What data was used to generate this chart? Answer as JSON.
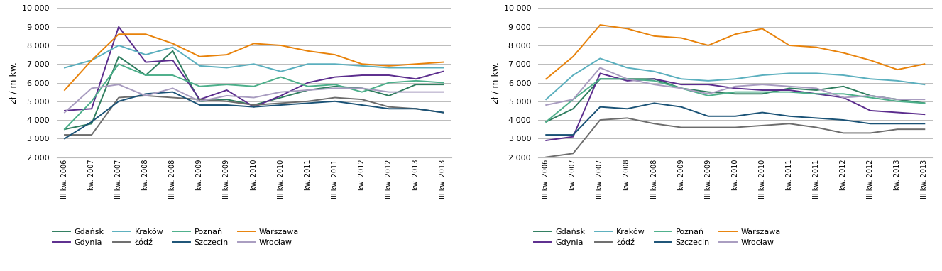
{
  "x_labels": [
    "III kw. 2006",
    "I kw. 2007",
    "III kw. 2007",
    "I kw. 2008",
    "III kw. 2008",
    "I kw. 2009",
    "III kw. 2009",
    "I kw. 2010",
    "III kw. 2010",
    "I kw. 2011",
    "III kw. 2011",
    "I kw. 2012",
    "III kw. 2012",
    "I kw. 2013",
    "III kw. 2013"
  ],
  "colors": {
    "Gdańsk": "#2E7D5E",
    "Gdynia": "#5B2C8D",
    "Kraków": "#5AAFBE",
    "Łódź": "#6D6D6D",
    "Poznań": "#4CAF8A",
    "Szczecin": "#1A5276",
    "Warszawa": "#E8820A",
    "Wrocław": "#A89CC0"
  },
  "chart1": {
    "Gdańsk": [
      3500,
      3800,
      7400,
      6400,
      7700,
      5000,
      5100,
      4800,
      5200,
      5600,
      5800,
      5700,
      5300,
      5900,
      5900
    ],
    "Gdynia": [
      4500,
      4600,
      9000,
      7100,
      7200,
      5100,
      5600,
      4700,
      5300,
      6000,
      6300,
      6400,
      6400,
      6200,
      6600
    ],
    "Kraków": [
      6800,
      7200,
      8000,
      7500,
      7900,
      6900,
      6800,
      7000,
      6600,
      7000,
      7000,
      6900,
      6800,
      6800,
      6800
    ],
    "Łódź": [
      3200,
      3200,
      5200,
      5300,
      5200,
      5100,
      5000,
      4800,
      4900,
      5000,
      5200,
      5100,
      4700,
      4600,
      4400
    ],
    "Poznań": [
      3500,
      5000,
      7000,
      6400,
      6400,
      5800,
      5900,
      5800,
      6300,
      5800,
      5900,
      5500,
      6000,
      6100,
      6000
    ],
    "Szczecin": [
      3000,
      3900,
      5000,
      5400,
      5500,
      4800,
      4800,
      4700,
      4800,
      4900,
      5000,
      4800,
      4600,
      4600,
      4400
    ],
    "Warszawa": [
      5600,
      7200,
      8600,
      8600,
      8100,
      7400,
      7500,
      8100,
      8000,
      7700,
      7500,
      7000,
      6900,
      7000,
      7100
    ],
    "Wrocław": [
      4400,
      5700,
      5900,
      5300,
      5700,
      5000,
      5300,
      5200,
      5500,
      5600,
      5700,
      5700,
      5500,
      5500,
      5500
    ]
  },
  "chart2": {
    "Gdańsk": [
      3900,
      4600,
      6200,
      6200,
      6200,
      5700,
      5500,
      5400,
      5400,
      5700,
      5600,
      5800,
      5300,
      5100,
      4900
    ],
    "Gdynia": [
      2900,
      3100,
      6500,
      6100,
      6200,
      5900,
      5900,
      5700,
      5600,
      5600,
      5400,
      5200,
      4500,
      4400,
      4300
    ],
    "Kraków": [
      5100,
      6400,
      7300,
      6800,
      6600,
      6200,
      6100,
      6200,
      6400,
      6500,
      6500,
      6400,
      6200,
      6100,
      5900
    ],
    "Łódź": [
      2000,
      2200,
      4000,
      4100,
      3800,
      3600,
      3600,
      3600,
      3700,
      3800,
      3600,
      3300,
      3300,
      3500,
      3500
    ],
    "Poznań": [
      3900,
      5100,
      6200,
      6200,
      6100,
      5700,
      5300,
      5500,
      5500,
      5500,
      5400,
      5400,
      5200,
      5000,
      4900
    ],
    "Szczecin": [
      3200,
      3200,
      4700,
      4600,
      4900,
      4700,
      4200,
      4200,
      4400,
      4200,
      4100,
      4000,
      3800,
      3800,
      3800
    ],
    "Warszawa": [
      6200,
      7400,
      9100,
      8900,
      8500,
      8400,
      8000,
      8600,
      8900,
      8000,
      7900,
      7600,
      7200,
      6700,
      7000
    ],
    "Wrocław": [
      4800,
      5100,
      6800,
      6200,
      5900,
      5700,
      5400,
      5800,
      5900,
      5800,
      5700,
      5200,
      5300,
      5100,
      5100
    ]
  },
  "ylim": [
    2000,
    10000
  ],
  "yticks": [
    2000,
    3000,
    4000,
    5000,
    6000,
    7000,
    8000,
    9000,
    10000
  ],
  "ylabel": "zł / m kw.",
  "legend_order": [
    "Gdańsk",
    "Gdynia",
    "Kraków",
    "Łódź",
    "Poznań",
    "Szczecin",
    "Warszawa",
    "Wrocław"
  ]
}
